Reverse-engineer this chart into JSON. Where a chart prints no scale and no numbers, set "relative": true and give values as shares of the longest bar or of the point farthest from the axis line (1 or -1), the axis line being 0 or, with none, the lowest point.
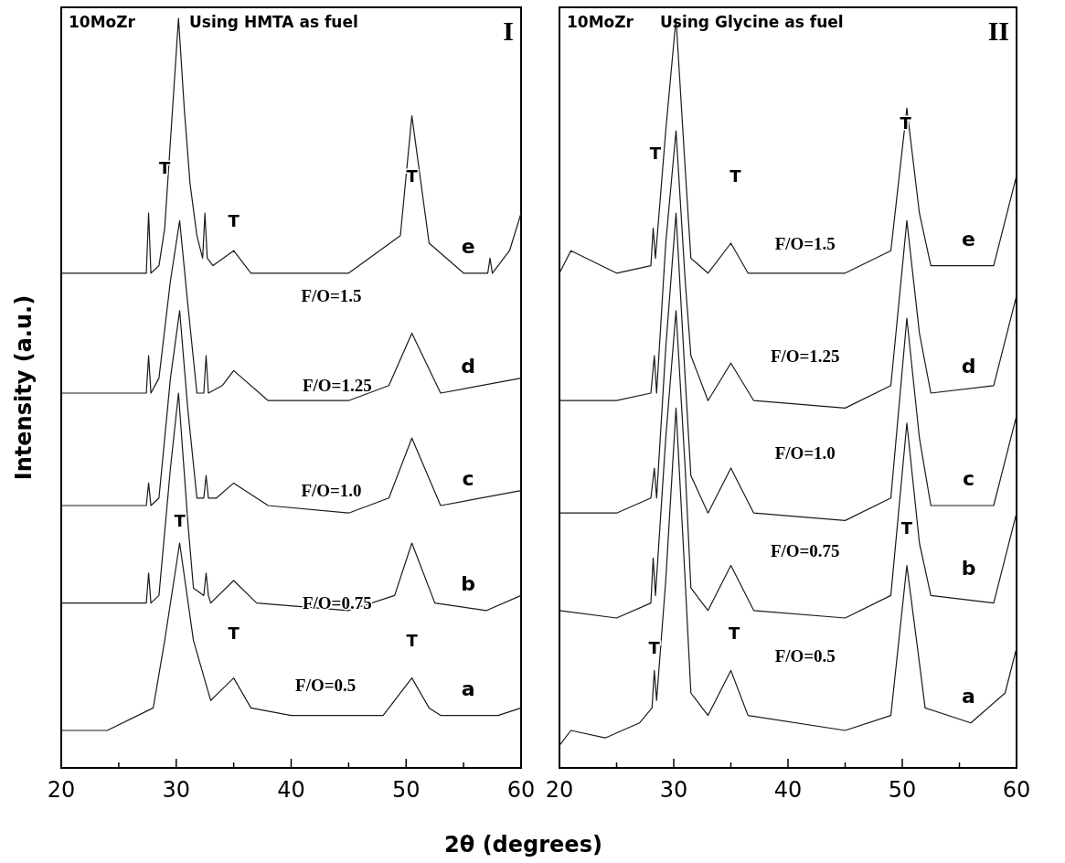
{
  "chart_data": [
    {
      "type": "line",
      "xlabel": "2θ (degrees)",
      "ylabel": "Intensity (a.u.)",
      "relative": true,
      "tick_labels": "x",
      "grid": false,
      "legend": false,
      "marker": "none",
      "line_style": "solid",
      "xlim": [
        20,
        60
      ],
      "xticks": [
        20,
        {
          "value": 25,
          "label": null
        },
        30,
        {
          "value": 35,
          "label": null
        },
        40,
        {
          "value": 45,
          "label": null
        },
        50,
        {
          "value": 55,
          "label": null
        },
        60
      ],
      "annotations": [
        "10MoZr",
        "Using HMTA  as fuel",
        "I",
        "T",
        "T",
        "T",
        "T",
        "T",
        "T",
        "F/O=1.5",
        "F/O=1.25",
        "F/O=1.0",
        "F/O=0.75",
        "F/O=0.5"
      ],
      "series": [
        {
          "name": "a",
          "color": "#1a1a1a",
          "x": [
            20,
            24,
            28,
            29,
            30.3,
            31.5,
            33,
            35,
            36.5,
            40,
            45,
            48,
            50.5,
            52,
            53,
            58,
            60
          ],
          "values": [
            0.05,
            0.05,
            0.08,
            0.17,
            0.3,
            0.17,
            0.09,
            0.12,
            0.08,
            0.07,
            0.07,
            0.07,
            0.12,
            0.08,
            0.07,
            0.07,
            0.08
          ]
        },
        {
          "name": "b",
          "color": "#1a1a1a",
          "x": [
            20,
            25,
            27.4,
            27.6,
            27.8,
            28.5,
            29.5,
            30.2,
            31,
            31.5,
            32.4,
            32.6,
            32.8,
            33,
            35,
            37,
            45,
            49,
            50.5,
            52.5,
            57,
            60
          ],
          "values": [
            0.22,
            0.22,
            0.22,
            0.26,
            0.22,
            0.23,
            0.4,
            0.5,
            0.33,
            0.24,
            0.23,
            0.26,
            0.23,
            0.22,
            0.25,
            0.22,
            0.21,
            0.23,
            0.3,
            0.22,
            0.21,
            0.23
          ]
        },
        {
          "name": "c",
          "color": "#1a1a1a",
          "x": [
            20,
            25,
            27.4,
            27.6,
            27.8,
            28.5,
            29.5,
            30.3,
            31,
            31.8,
            32.4,
            32.6,
            32.8,
            33.5,
            35,
            38,
            45,
            48.5,
            50.5,
            53,
            60
          ],
          "values": [
            0.35,
            0.35,
            0.35,
            0.38,
            0.35,
            0.36,
            0.52,
            0.61,
            0.48,
            0.36,
            0.36,
            0.39,
            0.36,
            0.36,
            0.38,
            0.35,
            0.34,
            0.36,
            0.44,
            0.35,
            0.37
          ]
        },
        {
          "name": "d",
          "color": "#1a1a1a",
          "x": [
            20,
            25,
            27.4,
            27.6,
            27.8,
            28.5,
            29.5,
            30.3,
            31,
            31.8,
            32.4,
            32.6,
            32.8,
            34,
            35,
            38,
            45,
            48.5,
            50.5,
            53,
            60
          ],
          "values": [
            0.5,
            0.5,
            0.5,
            0.55,
            0.5,
            0.52,
            0.65,
            0.73,
            0.62,
            0.5,
            0.5,
            0.55,
            0.5,
            0.51,
            0.53,
            0.49,
            0.49,
            0.51,
            0.58,
            0.5,
            0.52
          ]
        },
        {
          "name": "e",
          "color": "#1a1a1a",
          "x": [
            20,
            25,
            27.4,
            27.6,
            27.8,
            28.5,
            29,
            29.6,
            30.2,
            30.7,
            31.2,
            31.8,
            32.3,
            32.5,
            32.7,
            33.2,
            35,
            36.5,
            45,
            49.5,
            50.5,
            52,
            55,
            57.1,
            57.3,
            57.5,
            59,
            60
          ],
          "values": [
            0.66,
            0.66,
            0.66,
            0.74,
            0.66,
            0.67,
            0.72,
            0.86,
            1,
            0.88,
            0.78,
            0.71,
            0.68,
            0.74,
            0.68,
            0.67,
            0.69,
            0.66,
            0.66,
            0.71,
            0.87,
            0.7,
            0.66,
            0.66,
            0.68,
            0.66,
            0.69,
            0.74
          ]
        }
      ]
    },
    {
      "type": "line",
      "relative": true,
      "tick_labels": "x",
      "grid": false,
      "legend": false,
      "marker": "none",
      "line_style": "solid",
      "xlim": [
        20,
        60
      ],
      "xticks": [
        20,
        {
          "value": 25,
          "label": null
        },
        30,
        {
          "value": 35,
          "label": null
        },
        40,
        {
          "value": 45,
          "label": null
        },
        50,
        {
          "value": 55,
          "label": null
        },
        60
      ],
      "annotations": [
        "10MoZr",
        "Using Glycine  as fuel",
        "II",
        "T",
        "T",
        "T",
        "T",
        "T",
        "T",
        "F/O=1.5",
        "F/O=1.25",
        "F/O=1.0",
        "F/O=0.75",
        "F/O=0.5"
      ],
      "series": [
        {
          "name": "a",
          "color": "#1a1a1a",
          "x": [
            20,
            21,
            24,
            27,
            28.1,
            28.3,
            28.5,
            29.3,
            30.2,
            31,
            31.5,
            33,
            35,
            36.5,
            45,
            49,
            50.4,
            51.5,
            52,
            56,
            59,
            60
          ],
          "values": [
            0.03,
            0.05,
            0.04,
            0.06,
            0.08,
            0.13,
            0.09,
            0.25,
            0.48,
            0.25,
            0.1,
            0.07,
            0.13,
            0.07,
            0.05,
            0.07,
            0.27,
            0.14,
            0.08,
            0.06,
            0.1,
            0.16
          ]
        },
        {
          "name": "b",
          "color": "#1a1a1a",
          "x": [
            20,
            25,
            28,
            28.2,
            28.4,
            29.3,
            30.2,
            31,
            31.5,
            33,
            35,
            37,
            45,
            49,
            50.4,
            51.5,
            52.5,
            58,
            60
          ],
          "values": [
            0.21,
            0.2,
            0.22,
            0.28,
            0.23,
            0.44,
            0.61,
            0.4,
            0.24,
            0.21,
            0.27,
            0.21,
            0.2,
            0.23,
            0.46,
            0.3,
            0.23,
            0.22,
            0.34
          ]
        },
        {
          "name": "c",
          "color": "#1a1a1a",
          "x": [
            20,
            25,
            28,
            28.3,
            28.5,
            29.3,
            30.2,
            31,
            31.5,
            33,
            35,
            37,
            45,
            49,
            50.4,
            51.5,
            52.5,
            58,
            60
          ],
          "values": [
            0.34,
            0.34,
            0.36,
            0.4,
            0.36,
            0.56,
            0.74,
            0.52,
            0.39,
            0.34,
            0.4,
            0.34,
            0.33,
            0.36,
            0.6,
            0.44,
            0.35,
            0.35,
            0.47
          ]
        },
        {
          "name": "d",
          "color": "#1a1a1a",
          "x": [
            20,
            25,
            28,
            28.3,
            28.5,
            29.3,
            30.2,
            31,
            31.5,
            33,
            35,
            37,
            45,
            49,
            50.4,
            51.5,
            52.5,
            58,
            60
          ],
          "values": [
            0.49,
            0.49,
            0.5,
            0.55,
            0.5,
            0.7,
            0.85,
            0.65,
            0.55,
            0.49,
            0.54,
            0.49,
            0.48,
            0.51,
            0.73,
            0.58,
            0.5,
            0.51,
            0.63
          ]
        },
        {
          "name": "e",
          "color": "#1a1a1a",
          "x": [
            20,
            21,
            25,
            28,
            28.2,
            28.4,
            29.3,
            30.2,
            31,
            31.5,
            33,
            35,
            36.5,
            45,
            49,
            50.4,
            51.5,
            52.5,
            58,
            60
          ],
          "values": [
            0.66,
            0.69,
            0.66,
            0.67,
            0.72,
            0.68,
            0.85,
            1,
            0.8,
            0.68,
            0.66,
            0.7,
            0.66,
            0.66,
            0.69,
            0.88,
            0.74,
            0.67,
            0.67,
            0.79
          ]
        }
      ]
    }
  ]
}
